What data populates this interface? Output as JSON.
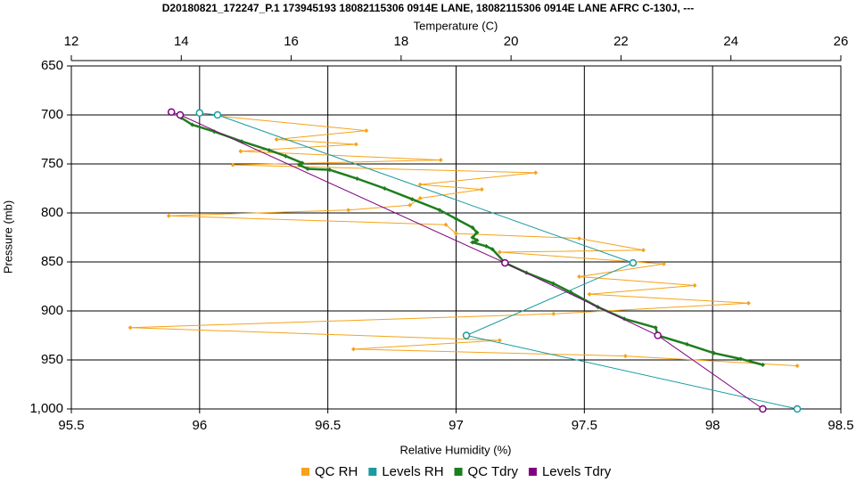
{
  "chart_data": {
    "type": "line",
    "title": "D20180821_172247_P.1 173945193 18082115306 0914E LANE, 18082115306 0914E LANE AFRC C-130J, ---",
    "xlabel": "Relative Humidity (%)",
    "x2label": "Temperature (C)",
    "ylabel": "Pressure (mb)",
    "xlim": [
      95.5,
      98.5
    ],
    "xticks": [
      95.5,
      96,
      96.5,
      97,
      97.5,
      98,
      98.5
    ],
    "x2lim": [
      12,
      26
    ],
    "x2ticks": [
      12,
      14,
      16,
      18,
      20,
      22,
      24,
      26
    ],
    "ylim": [
      650,
      1000
    ],
    "y_inverted": true,
    "yticks": [
      650,
      700,
      750,
      800,
      850,
      900,
      950,
      {
        "value": 1000,
        "label": "1,000"
      }
    ],
    "grid": true,
    "legend": "bottom",
    "series": [
      {
        "name": "QC RH",
        "color": "#f5a31a",
        "marker": "diamond",
        "axis": "x",
        "x": [
          96.07,
          96.65,
          96.3,
          96.61,
          96.16,
          96.94,
          96.13,
          97.31,
          96.86,
          97.1,
          96.86,
          96.82,
          96.58,
          95.88,
          96.96,
          97.0,
          97.48,
          97.73,
          97.17,
          97.81,
          97.48,
          97.93,
          97.52,
          98.14,
          97.38,
          95.73,
          97.17,
          96.6,
          97.66,
          98.33
        ],
        "y": [
          701,
          716,
          725,
          730,
          737,
          746,
          751,
          759,
          771,
          776,
          785,
          792,
          797,
          803,
          812,
          821,
          826,
          838,
          840,
          852,
          865,
          874,
          883,
          892,
          903,
          917,
          930,
          939,
          946,
          956
        ]
      },
      {
        "name": "Levels RH",
        "color": "#1a9ba0",
        "marker": "circle",
        "axis": "x",
        "x": [
          96.0,
          96.07,
          97.69,
          97.04,
          98.33
        ],
        "y": [
          698,
          700,
          851,
          925,
          1000
        ]
      },
      {
        "name": "QC Tdry",
        "color": "#1e7d1e",
        "marker": "diamond",
        "axis": "x2",
        "x": [
          14.0,
          14.2,
          14.6,
          15.1,
          15.6,
          15.9,
          16.2,
          16.15,
          16.3,
          16.7,
          17.2,
          17.7,
          18.2,
          18.7,
          19.0,
          19.3,
          19.38,
          19.3,
          19.38,
          19.3,
          19.55,
          19.66,
          19.89,
          20.28,
          20.77,
          21.09,
          21.58,
          22.06,
          22.63,
          22.67,
          23.2,
          23.69,
          24.18,
          24.58
        ],
        "y": [
          703,
          710,
          717,
          727,
          736,
          742,
          749,
          751,
          755,
          756,
          765,
          775,
          786,
          797,
          806,
          815,
          820,
          825,
          828,
          830,
          834,
          837,
          851,
          861,
          872,
          881,
          896,
          908,
          917,
          925,
          934,
          943,
          949,
          955
        ]
      },
      {
        "name": "Levels Tdry",
        "color": "#800080",
        "marker": "circle",
        "axis": "x2",
        "x": [
          13.82,
          13.98,
          19.89,
          22.67,
          24.58
        ],
        "y": [
          697,
          700,
          851,
          925,
          1000
        ]
      }
    ]
  }
}
